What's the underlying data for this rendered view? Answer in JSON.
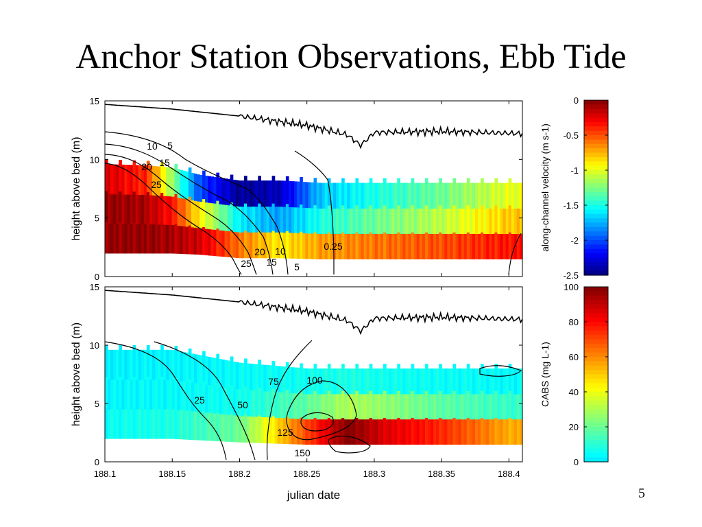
{
  "slide": {
    "title": "Anchor Station Observations, Ebb Tide",
    "page_number": "5"
  },
  "chart_data": [
    {
      "type": "heatmap",
      "panel": "top",
      "xlabel": "",
      "ylabel": "height above bed (m)",
      "xlim": [
        188.1,
        188.41
      ],
      "ylim": [
        0,
        15
      ],
      "yticks": [
        "0",
        "5",
        "10",
        "15"
      ],
      "colorbar": {
        "label": "along-channel velocity (m s-1)",
        "range": [
          -2.5,
          0
        ],
        "ticks": [
          "0",
          "-0.5",
          "-1",
          "-1.5",
          "-2",
          "-2.5"
        ],
        "colormap": "jet"
      },
      "contour_labels": [
        "5",
        "10",
        "15",
        "20",
        "25",
        "20",
        "10",
        "25",
        "15",
        "5",
        "0.25"
      ],
      "field": [
        {
          "x": 188.1,
          "bottom": 2.0,
          "top": 9.6,
          "near_bed": -0.05,
          "mid": -0.05,
          "top_value": -0.2
        },
        {
          "x": 188.13,
          "bottom": 2.0,
          "top": 9.5,
          "near_bed": -0.05,
          "mid": -0.1,
          "top_value": -0.4
        },
        {
          "x": 188.15,
          "bottom": 2.0,
          "top": 9.3,
          "near_bed": -0.1,
          "mid": -0.35,
          "top_value": -1.2
        },
        {
          "x": 188.17,
          "bottom": 1.9,
          "top": 8.7,
          "near_bed": -0.2,
          "mid": -0.9,
          "top_value": -2.0
        },
        {
          "x": 188.2,
          "bottom": 1.6,
          "top": 8.2,
          "near_bed": -0.6,
          "mid": -1.6,
          "top_value": -2.45
        },
        {
          "x": 188.23,
          "bottom": 1.6,
          "top": 8.2,
          "near_bed": -0.9,
          "mid": -1.8,
          "top_value": -2.35
        },
        {
          "x": 188.26,
          "bottom": 1.5,
          "top": 8.0,
          "near_bed": -0.7,
          "mid": -1.5,
          "top_value": -1.7
        },
        {
          "x": 188.3,
          "bottom": 1.5,
          "top": 8.0,
          "near_bed": -0.6,
          "mid": -1.3,
          "top_value": -1.5
        },
        {
          "x": 188.35,
          "bottom": 1.5,
          "top": 8.0,
          "near_bed": -0.5,
          "mid": -1.1,
          "top_value": -1.3
        },
        {
          "x": 188.4,
          "bottom": 1.5,
          "top": 8.0,
          "near_bed": -0.35,
          "mid": -0.8,
          "top_value": -1.0
        }
      ],
      "surface_line": [
        {
          "x": 188.1,
          "y": 14.7
        },
        {
          "x": 188.15,
          "y": 14.3
        },
        {
          "x": 188.2,
          "y": 13.7
        },
        {
          "x": 188.25,
          "y": 12.9
        },
        {
          "x": 188.28,
          "y": 12.1
        },
        {
          "x": 188.29,
          "y": 11.2
        },
        {
          "x": 188.3,
          "y": 12.3
        },
        {
          "x": 188.35,
          "y": 12.4
        },
        {
          "x": 188.41,
          "y": 12.2
        }
      ]
    },
    {
      "type": "heatmap",
      "panel": "bottom",
      "xlabel": "julian date",
      "ylabel": "height above bed (m)",
      "xlim": [
        188.1,
        188.41
      ],
      "ylim": [
        0,
        15
      ],
      "xticks": [
        "188.1",
        "188.15",
        "188.2",
        "188.25",
        "188.3",
        "188.35",
        "188.4"
      ],
      "yticks": [
        "0",
        "5",
        "10",
        "15"
      ],
      "colorbar": {
        "label": "CABS (mg L-1)",
        "range": [
          0,
          100
        ],
        "ticks": [
          "0",
          "20",
          "40",
          "60",
          "80",
          "100"
        ],
        "colormap": "jet-upper"
      },
      "contour_labels": [
        "25",
        "50",
        "75",
        "100",
        "125",
        "150"
      ],
      "field": [
        {
          "x": 188.1,
          "bottom": 2.0,
          "top": 9.6,
          "near_bed": 5,
          "mid": 3,
          "top_value": 2
        },
        {
          "x": 188.15,
          "bottom": 2.0,
          "top": 9.6,
          "near_bed": 8,
          "mid": 4,
          "top_value": 3
        },
        {
          "x": 188.2,
          "bottom": 1.7,
          "top": 8.5,
          "near_bed": 20,
          "mid": 6,
          "top_value": 4
        },
        {
          "x": 188.25,
          "bottom": 1.5,
          "top": 8.0,
          "near_bed": 70,
          "mid": 18,
          "top_value": 6
        },
        {
          "x": 188.28,
          "bottom": 1.5,
          "top": 8.0,
          "near_bed": 100,
          "mid": 30,
          "top_value": 8
        },
        {
          "x": 188.31,
          "bottom": 1.5,
          "top": 8.0,
          "near_bed": 85,
          "mid": 25,
          "top_value": 6
        },
        {
          "x": 188.35,
          "bottom": 1.5,
          "top": 8.0,
          "near_bed": 75,
          "mid": 18,
          "top_value": 5
        },
        {
          "x": 188.4,
          "bottom": 1.5,
          "top": 8.0,
          "near_bed": 55,
          "mid": 12,
          "top_value": 4
        }
      ],
      "surface_line": [
        {
          "x": 188.1,
          "y": 14.7
        },
        {
          "x": 188.15,
          "y": 14.3
        },
        {
          "x": 188.2,
          "y": 13.7
        },
        {
          "x": 188.25,
          "y": 12.9
        },
        {
          "x": 188.28,
          "y": 12.1
        },
        {
          "x": 188.29,
          "y": 11.2
        },
        {
          "x": 188.3,
          "y": 12.3
        },
        {
          "x": 188.35,
          "y": 12.4
        },
        {
          "x": 188.41,
          "y": 12.2
        }
      ]
    }
  ]
}
